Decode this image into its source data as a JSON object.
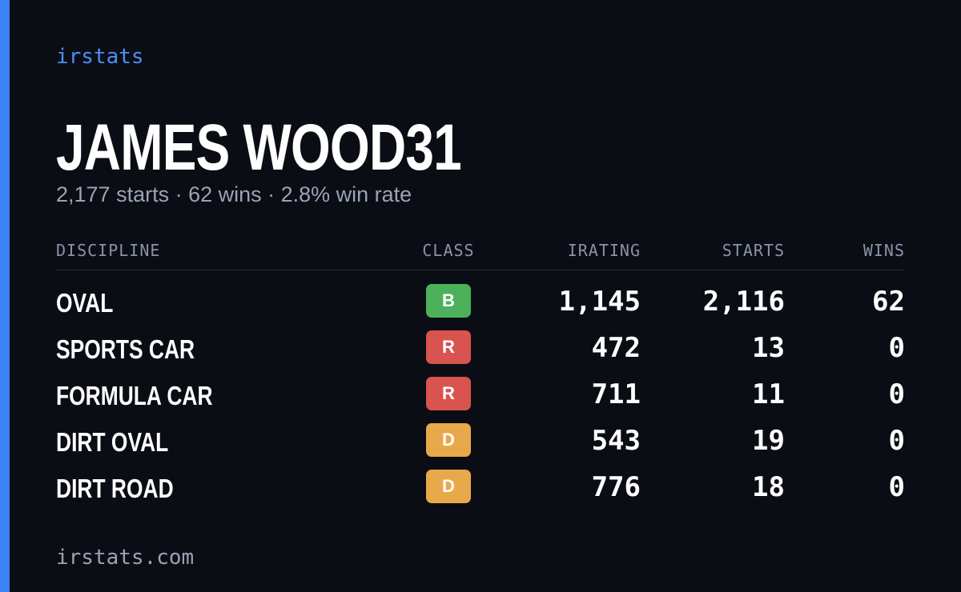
{
  "brand": "irstats",
  "profile": {
    "name": "JAMES WOOD31",
    "summary": "2,177 starts · 62 wins · 2.8% win rate"
  },
  "table": {
    "headers": [
      "DISCIPLINE",
      "CLASS",
      "IRATING",
      "STARTS",
      "WINS"
    ],
    "rows": [
      {
        "discipline": "OVAL",
        "class": "B",
        "badge_color": "#4cb15a",
        "irating": "1,145",
        "starts": "2,116",
        "wins": "62"
      },
      {
        "discipline": "SPORTS CAR",
        "class": "R",
        "badge_color": "#d9534f",
        "irating": "472",
        "starts": "13",
        "wins": "0"
      },
      {
        "discipline": "FORMULA CAR",
        "class": "R",
        "badge_color": "#d9534f",
        "irating": "711",
        "starts": "11",
        "wins": "0"
      },
      {
        "discipline": "DIRT OVAL",
        "class": "D",
        "badge_color": "#e8a94a",
        "irating": "543",
        "starts": "19",
        "wins": "0"
      },
      {
        "discipline": "DIRT ROAD",
        "class": "D",
        "badge_color": "#e8a94a",
        "irating": "776",
        "starts": "18",
        "wins": "0"
      }
    ]
  },
  "footer": "irstats.com"
}
